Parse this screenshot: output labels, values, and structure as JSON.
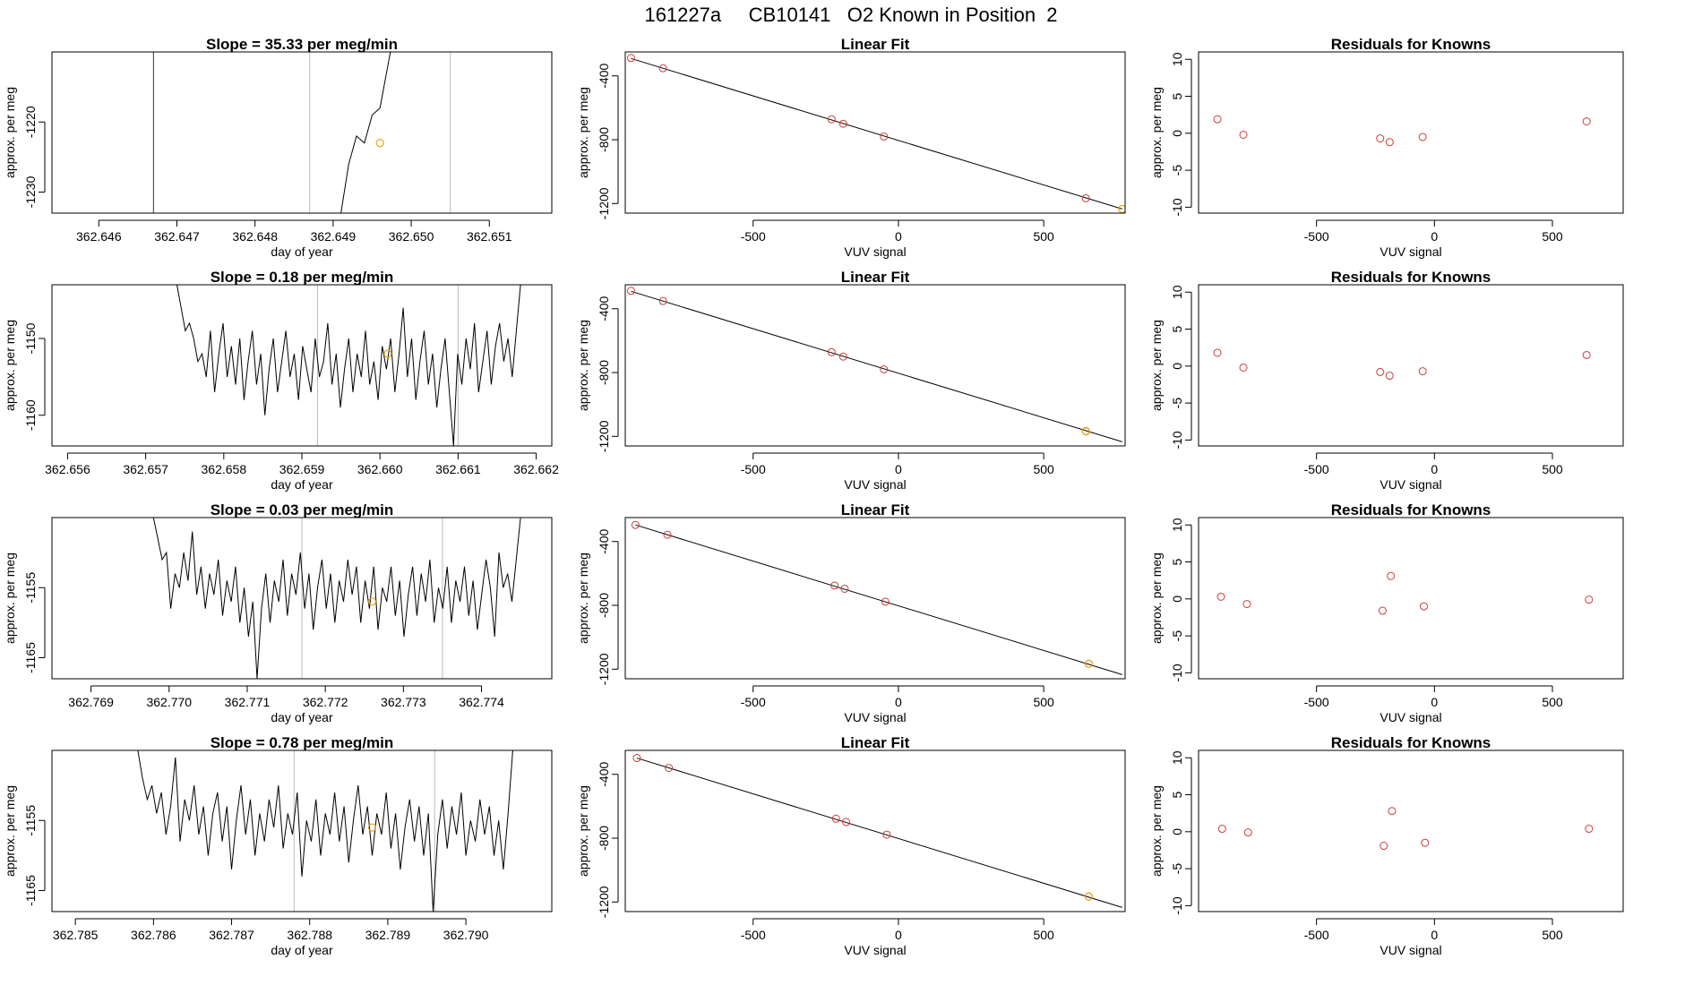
{
  "page": {
    "title": "161227a     CB10141   O2 Known in Position  2"
  },
  "colors": {
    "line": "#000000",
    "known_point": "#cd3b3b",
    "highlight_point": "#e8a317",
    "marker_line": "#bbbbbb",
    "axis": "#000000"
  },
  "chart_data": [
    {
      "type": "line",
      "title": "Slope =  35.33  per meg/min",
      "xlabel": "day of year",
      "ylabel": "approx. per meg",
      "xlim": [
        362.6454,
        362.6518
      ],
      "ylim": [
        -1233,
        -1210
      ],
      "xticks": [
        362.646,
        362.647,
        362.648,
        362.649,
        362.65,
        362.651
      ],
      "xtick_labels": [
        "362.646",
        "362.647",
        "362.648",
        "362.649",
        "362.650",
        "362.651"
      ],
      "yticks": [
        -1220,
        -1230
      ],
      "ytick_labels": [
        "-1220",
        "-1230"
      ],
      "marker_lines": [
        362.6487,
        362.6505
      ],
      "dark_marker_lines": [
        362.6467
      ],
      "series_x": [
        362.6491,
        362.6492,
        362.6493,
        362.6494,
        362.6495,
        362.6496,
        362.6497,
        362.6498,
        362.6499,
        362.65
      ],
      "series_y": [
        -1233,
        -1226,
        -1222,
        -1223,
        -1219,
        -1218,
        -1212,
        -1206,
        -1204,
        -1196
      ],
      "highlight": {
        "x": 362.6496,
        "y": -1223
      }
    },
    {
      "type": "scatter",
      "title": "Linear Fit",
      "xlabel": "VUV signal",
      "ylabel": "approx. per meg",
      "xlim": [
        -940,
        780
      ],
      "ylim": [
        -1260,
        -250
      ],
      "xticks": [
        -500,
        0,
        500
      ],
      "xtick_labels": [
        "-500",
        "0",
        "500"
      ],
      "yticks": [
        -400,
        -800,
        -1200
      ],
      "ytick_labels": [
        "-400",
        "-800",
        "-1200"
      ],
      "fit_line": [
        [
          -920,
          -291
        ],
        [
          770,
          -1234
        ]
      ],
      "points": [
        [
          -920,
          -288
        ],
        [
          -810,
          -352
        ],
        [
          -230,
          -672
        ],
        [
          -190,
          -700
        ],
        [
          -50,
          -780
        ],
        [
          645,
          -1167
        ]
      ],
      "highlight": {
        "x": 770,
        "y": -1234
      }
    },
    {
      "type": "scatter",
      "title": "Residuals for Knowns",
      "xlabel": "VUV signal",
      "ylabel": "approx. per meg",
      "xlim": [
        -1000,
        800
      ],
      "ylim": [
        -10.8,
        11
      ],
      "xticks": [
        -500,
        0,
        500
      ],
      "xtick_labels": [
        "-500",
        "0",
        "500"
      ],
      "yticks": [
        10,
        5,
        0,
        -5,
        -10
      ],
      "ytick_labels": [
        "10",
        "5",
        "0",
        "-5",
        "-10"
      ],
      "points": [
        [
          -920,
          1.9
        ],
        [
          -810,
          -0.2
        ],
        [
          -230,
          -0.7
        ],
        [
          -190,
          -1.2
        ],
        [
          -50,
          -0.5
        ],
        [
          645,
          1.6
        ]
      ]
    },
    {
      "type": "line",
      "title": "Slope =  0.18  per meg/min",
      "xlabel": "day of year",
      "ylabel": "approx. per meg",
      "xlim": [
        362.6558,
        362.6622
      ],
      "ylim": [
        -1164,
        -1143
      ],
      "xticks": [
        362.656,
        362.657,
        362.658,
        362.659,
        362.66,
        362.661,
        362.662
      ],
      "xtick_labels": [
        "362.656",
        "362.657",
        "362.658",
        "362.659",
        "362.660",
        "362.661",
        "362.662"
      ],
      "yticks": [
        -1150,
        -1160
      ],
      "ytick_labels": [
        "-1150",
        "-1160"
      ],
      "marker_lines": [
        362.6592,
        362.661
      ],
      "dark_marker_lines": [],
      "series_start": 362.6574,
      "series_end": 362.6618,
      "series_y": [
        -1143,
        -1146,
        -1149,
        -1148,
        -1150,
        -1153,
        -1152,
        -1155,
        -1149,
        -1157,
        -1152,
        -1148,
        -1155,
        -1151,
        -1156,
        -1150,
        -1158,
        -1153,
        -1149,
        -1156,
        -1152,
        -1160,
        -1154,
        -1150,
        -1157,
        -1153,
        -1149,
        -1155,
        -1152,
        -1158,
        -1151,
        -1154,
        -1157,
        -1150,
        -1155,
        -1153,
        -1148,
        -1156,
        -1152,
        -1159,
        -1154,
        -1150,
        -1157,
        -1152,
        -1155,
        -1149,
        -1156,
        -1153,
        -1158,
        -1151,
        -1154,
        -1150,
        -1157,
        -1152,
        -1146,
        -1155,
        -1150,
        -1158,
        -1153,
        -1149,
        -1156,
        -1152,
        -1159,
        -1154,
        -1150,
        -1157,
        -1164,
        -1152,
        -1156,
        -1150,
        -1154,
        -1148,
        -1157,
        -1153,
        -1149,
        -1156,
        -1151,
        -1148,
        -1153,
        -1150,
        -1155,
        -1149,
        -1143
      ],
      "highlight": {
        "x": 362.6601,
        "y": -1152
      }
    },
    {
      "type": "scatter",
      "title": "Linear Fit",
      "xlabel": "VUV signal",
      "ylabel": "approx. per meg",
      "xlim": [
        -940,
        780
      ],
      "ylim": [
        -1260,
        -250
      ],
      "xticks": [
        -500,
        0,
        500
      ],
      "xtick_labels": [
        "-500",
        "0",
        "500"
      ],
      "yticks": [
        -400,
        -800,
        -1200
      ],
      "ytick_labels": [
        "-400",
        "-800",
        "-1200"
      ],
      "fit_line": [
        [
          -920,
          -291
        ],
        [
          770,
          -1234
        ]
      ],
      "points": [
        [
          -920,
          -288
        ],
        [
          -810,
          -352
        ],
        [
          -230,
          -672
        ],
        [
          -190,
          -700
        ],
        [
          -50,
          -780
        ],
        [
          645,
          -1167
        ]
      ],
      "highlight": {
        "x": 645,
        "y": -1169
      }
    },
    {
      "type": "scatter",
      "title": "Residuals for Knowns",
      "xlabel": "VUV signal",
      "ylabel": "approx. per meg",
      "xlim": [
        -1000,
        800
      ],
      "ylim": [
        -10.8,
        11
      ],
      "xticks": [
        -500,
        0,
        500
      ],
      "xtick_labels": [
        "-500",
        "0",
        "500"
      ],
      "yticks": [
        10,
        5,
        0,
        -5,
        -10
      ],
      "ytick_labels": [
        "10",
        "5",
        "0",
        "-5",
        "-10"
      ],
      "points": [
        [
          -920,
          1.8
        ],
        [
          -810,
          -0.2
        ],
        [
          -230,
          -0.8
        ],
        [
          -190,
          -1.3
        ],
        [
          -50,
          -0.7
        ],
        [
          645,
          1.5
        ]
      ]
    },
    {
      "type": "line",
      "title": "Slope =  0.03  per meg/min",
      "xlabel": "day of year",
      "ylabel": "approx. per meg",
      "xlim": [
        362.7685,
        362.7749
      ],
      "ylim": [
        -1168,
        -1145
      ],
      "xticks": [
        362.769,
        362.77,
        362.771,
        362.772,
        362.773,
        362.774
      ],
      "xtick_labels": [
        "362.769",
        "362.770",
        "362.771",
        "362.772",
        "362.773",
        "362.774"
      ],
      "yticks": [
        -1155,
        -1165
      ],
      "ytick_labels": [
        "-1155",
        "-1165"
      ],
      "marker_lines": [
        362.7717,
        362.7735
      ],
      "dark_marker_lines": [],
      "series_start": 362.7698,
      "series_end": 362.7745,
      "series_y": [
        -1145,
        -1148,
        -1151,
        -1150,
        -1158,
        -1153,
        -1155,
        -1150,
        -1154,
        -1147,
        -1156,
        -1152,
        -1158,
        -1153,
        -1156,
        -1151,
        -1159,
        -1154,
        -1157,
        -1152,
        -1160,
        -1155,
        -1162,
        -1157,
        -1168,
        -1158,
        -1153,
        -1160,
        -1154,
        -1157,
        -1151,
        -1159,
        -1153,
        -1156,
        -1150,
        -1158,
        -1153,
        -1161,
        -1155,
        -1151,
        -1158,
        -1153,
        -1160,
        -1154,
        -1157,
        -1151,
        -1156,
        -1152,
        -1160,
        -1154,
        -1158,
        -1152,
        -1161,
        -1155,
        -1157,
        -1152,
        -1159,
        -1154,
        -1162,
        -1156,
        -1152,
        -1159,
        -1153,
        -1157,
        -1151,
        -1160,
        -1155,
        -1158,
        -1152,
        -1160,
        -1154,
        -1157,
        -1152,
        -1159,
        -1154,
        -1161,
        -1156,
        -1151,
        -1155,
        -1162,
        -1150,
        -1155,
        -1153,
        -1157,
        -1151,
        -1145
      ],
      "highlight": {
        "x": 362.7726,
        "y": -1157
      }
    },
    {
      "type": "scatter",
      "title": "Linear Fit",
      "xlabel": "VUV signal",
      "ylabel": "approx. per meg",
      "xlim": [
        -940,
        780
      ],
      "ylim": [
        -1260,
        -250
      ],
      "xticks": [
        -500,
        0,
        500
      ],
      "xtick_labels": [
        "-500",
        "0",
        "500"
      ],
      "yticks": [
        -400,
        -800,
        -1200
      ],
      "ytick_labels": [
        "-400",
        "-800",
        "-1200"
      ],
      "fit_line": [
        [
          -905,
          -296
        ],
        [
          770,
          -1234
        ]
      ],
      "points": [
        [
          -905,
          -296
        ],
        [
          -795,
          -358
        ],
        [
          -220,
          -676
        ],
        [
          -185,
          -696
        ],
        [
          -45,
          -777
        ],
        [
          655,
          -1166
        ]
      ],
      "highlight": {
        "x": 655,
        "y": -1166
      }
    },
    {
      "type": "scatter",
      "title": "Residuals for Knowns",
      "xlabel": "VUV signal",
      "ylabel": "approx. per meg",
      "xlim": [
        -1000,
        800
      ],
      "ylim": [
        -10.8,
        11
      ],
      "xticks": [
        -500,
        0,
        500
      ],
      "xtick_labels": [
        "-500",
        "0",
        "500"
      ],
      "yticks": [
        10,
        5,
        0,
        -5,
        -10
      ],
      "ytick_labels": [
        "10",
        "5",
        "0",
        "-5",
        "-10"
      ],
      "points": [
        [
          -905,
          0.3
        ],
        [
          -795,
          -0.7
        ],
        [
          -220,
          -1.6
        ],
        [
          -185,
          3.1
        ],
        [
          -45,
          -1.0
        ],
        [
          655,
          -0.1
        ]
      ]
    },
    {
      "type": "line",
      "title": "Slope =  0.78  per meg/min",
      "xlabel": "day of year",
      "ylabel": "approx. per meg",
      "xlim": [
        362.7847,
        362.7911
      ],
      "ylim": [
        -1168,
        -1145
      ],
      "xticks": [
        362.785,
        362.786,
        362.787,
        362.788,
        362.789,
        362.79
      ],
      "xtick_labels": [
        "362.785",
        "362.786",
        "362.787",
        "362.788",
        "362.789",
        "362.790"
      ],
      "yticks": [
        -1155,
        -1165
      ],
      "ytick_labels": [
        "-1155",
        "-1165"
      ],
      "marker_lines": [
        362.7878,
        362.7896
      ],
      "dark_marker_lines": [],
      "series_start": 362.7858,
      "series_end": 362.7906,
      "series_y": [
        -1145,
        -1149,
        -1152,
        -1150,
        -1154,
        -1151,
        -1157,
        -1153,
        -1146,
        -1158,
        -1152,
        -1155,
        -1150,
        -1157,
        -1153,
        -1160,
        -1154,
        -1151,
        -1158,
        -1153,
        -1162,
        -1155,
        -1150,
        -1157,
        -1152,
        -1160,
        -1154,
        -1158,
        -1152,
        -1156,
        -1150,
        -1159,
        -1154,
        -1157,
        -1151,
        -1163,
        -1155,
        -1158,
        -1152,
        -1160,
        -1154,
        -1157,
        -1151,
        -1158,
        -1153,
        -1161,
        -1155,
        -1150,
        -1157,
        -1153,
        -1160,
        -1154,
        -1157,
        -1151,
        -1159,
        -1154,
        -1162,
        -1156,
        -1152,
        -1158,
        -1153,
        -1160,
        -1154,
        -1168,
        -1157,
        -1152,
        -1159,
        -1153,
        -1157,
        -1151,
        -1160,
        -1155,
        -1158,
        -1152,
        -1157,
        -1153,
        -1160,
        -1155,
        -1162,
        -1154,
        -1145
      ],
      "highlight": {
        "x": 362.7888,
        "y": -1156
      }
    },
    {
      "type": "scatter",
      "title": "Linear Fit",
      "xlabel": "VUV signal",
      "ylabel": "approx. per meg",
      "xlim": [
        -940,
        780
      ],
      "ylim": [
        -1260,
        -250
      ],
      "xticks": [
        -500,
        0,
        500
      ],
      "xtick_labels": [
        "-500",
        "0",
        "500"
      ],
      "yticks": [
        -400,
        -800,
        -1200
      ],
      "ytick_labels": [
        "-400",
        "-800",
        "-1200"
      ],
      "fit_line": [
        [
          -900,
          -298
        ],
        [
          770,
          -1234
        ]
      ],
      "points": [
        [
          -900,
          -298
        ],
        [
          -790,
          -360
        ],
        [
          -215,
          -678
        ],
        [
          -180,
          -699
        ],
        [
          -40,
          -778
        ],
        [
          655,
          -1166
        ]
      ],
      "highlight": {
        "x": 655,
        "y": -1166
      }
    },
    {
      "type": "scatter",
      "title": "Residuals for Knowns",
      "xlabel": "VUV signal",
      "ylabel": "approx. per meg",
      "xlim": [
        -1000,
        800
      ],
      "ylim": [
        -10.8,
        11
      ],
      "xticks": [
        -500,
        0,
        500
      ],
      "xtick_labels": [
        "-500",
        "0",
        "500"
      ],
      "yticks": [
        10,
        5,
        0,
        -5,
        -10
      ],
      "ytick_labels": [
        "10",
        "5",
        "0",
        "-5",
        "-10"
      ],
      "points": [
        [
          -900,
          0.4
        ],
        [
          -790,
          -0.1
        ],
        [
          -215,
          -1.9
        ],
        [
          -180,
          2.8
        ],
        [
          -40,
          -1.5
        ],
        [
          655,
          0.4
        ]
      ]
    }
  ]
}
